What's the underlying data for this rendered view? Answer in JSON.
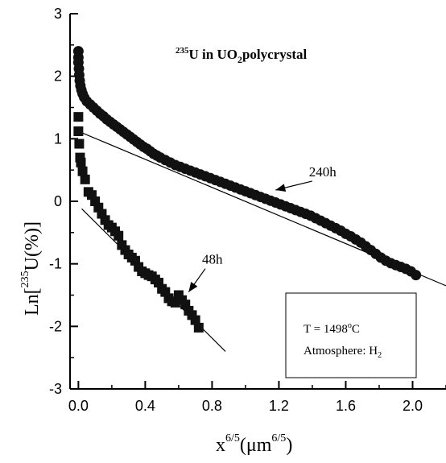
{
  "chart_data": {
    "type": "scatter",
    "title_parts": {
      "sup": "235",
      "main": "U in UO",
      "sub": "2",
      "tail": "polycrystal"
    },
    "xlabel_parts": {
      "base": "x",
      "sup1": "6/5",
      "open": "(μm",
      "sup2": "6/5",
      "close": ")"
    },
    "ylabel_parts": {
      "base": "Ln[",
      "sup": "235",
      "tail": "U(%)]"
    },
    "xlim": [
      -0.05,
      2.2
    ],
    "ylim": [
      -3,
      3
    ],
    "x_ticks": [
      0.0,
      0.4,
      0.8,
      1.2,
      1.6,
      2.0
    ],
    "x_tick_labels": [
      "0.0",
      "0.4",
      "0.8",
      "1.2",
      "1.6",
      "2.0"
    ],
    "y_ticks": [
      -3,
      -2,
      -1,
      0,
      1,
      2,
      3
    ],
    "y_tick_labels": [
      "-3",
      "-2",
      "-1",
      "0",
      "1",
      "2",
      "3"
    ],
    "series": [
      {
        "label": "240h",
        "marker": "circle",
        "points": [
          [
            0.0,
            2.4
          ],
          [
            0.0,
            2.3
          ],
          [
            0.0,
            2.22
          ],
          [
            0.003,
            2.12
          ],
          [
            0.005,
            2.02
          ],
          [
            0.008,
            1.93
          ],
          [
            0.012,
            1.85
          ],
          [
            0.018,
            1.78
          ],
          [
            0.025,
            1.72
          ],
          [
            0.035,
            1.66
          ],
          [
            0.05,
            1.6
          ],
          [
            0.07,
            1.55
          ],
          [
            0.09,
            1.5
          ],
          [
            0.11,
            1.45
          ],
          [
            0.13,
            1.4
          ],
          [
            0.15,
            1.36
          ],
          [
            0.17,
            1.31
          ],
          [
            0.19,
            1.27
          ],
          [
            0.21,
            1.23
          ],
          [
            0.23,
            1.19
          ],
          [
            0.25,
            1.15
          ],
          [
            0.27,
            1.11
          ],
          [
            0.29,
            1.07
          ],
          [
            0.31,
            1.03
          ],
          [
            0.33,
            0.99
          ],
          [
            0.35,
            0.95
          ],
          [
            0.37,
            0.91
          ],
          [
            0.39,
            0.87
          ],
          [
            0.41,
            0.84
          ],
          [
            0.43,
            0.8
          ],
          [
            0.45,
            0.76
          ],
          [
            0.47,
            0.73
          ],
          [
            0.49,
            0.7
          ],
          [
            0.52,
            0.66
          ],
          [
            0.55,
            0.62
          ],
          [
            0.58,
            0.58
          ],
          [
            0.61,
            0.55
          ],
          [
            0.64,
            0.52
          ],
          [
            0.67,
            0.49
          ],
          [
            0.7,
            0.46
          ],
          [
            0.73,
            0.43
          ],
          [
            0.76,
            0.4
          ],
          [
            0.79,
            0.37
          ],
          [
            0.82,
            0.34
          ],
          [
            0.85,
            0.31
          ],
          [
            0.88,
            0.28
          ],
          [
            0.91,
            0.25
          ],
          [
            0.94,
            0.22
          ],
          [
            0.97,
            0.19
          ],
          [
            1.0,
            0.16
          ],
          [
            1.03,
            0.13
          ],
          [
            1.06,
            0.1
          ],
          [
            1.09,
            0.07
          ],
          [
            1.12,
            0.04
          ],
          [
            1.15,
            0.01
          ],
          [
            1.18,
            -0.02
          ],
          [
            1.21,
            -0.05
          ],
          [
            1.24,
            -0.08
          ],
          [
            1.27,
            -0.11
          ],
          [
            1.3,
            -0.14
          ],
          [
            1.33,
            -0.17
          ],
          [
            1.36,
            -0.2
          ],
          [
            1.39,
            -0.23
          ],
          [
            1.42,
            -0.27
          ],
          [
            1.45,
            -0.31
          ],
          [
            1.48,
            -0.35
          ],
          [
            1.51,
            -0.39
          ],
          [
            1.54,
            -0.43
          ],
          [
            1.57,
            -0.47
          ],
          [
            1.6,
            -0.52
          ],
          [
            1.63,
            -0.56
          ],
          [
            1.66,
            -0.61
          ],
          [
            1.69,
            -0.66
          ],
          [
            1.72,
            -0.72
          ],
          [
            1.75,
            -0.78
          ],
          [
            1.78,
            -0.84
          ],
          [
            1.81,
            -0.9
          ],
          [
            1.84,
            -0.95
          ],
          [
            1.87,
            -0.99
          ],
          [
            1.9,
            -1.02
          ],
          [
            1.93,
            -1.05
          ],
          [
            1.96,
            -1.08
          ],
          [
            1.99,
            -1.12
          ],
          [
            2.02,
            -1.18
          ]
        ],
        "fit_line": [
          [
            0.0,
            1.12
          ],
          [
            2.2,
            -1.35
          ]
        ]
      },
      {
        "label": "48h",
        "marker": "square",
        "points": [
          [
            0.0,
            1.35
          ],
          [
            0.0,
            1.12
          ],
          [
            0.005,
            0.92
          ],
          [
            0.01,
            0.7
          ],
          [
            0.015,
            0.62
          ],
          [
            0.025,
            0.48
          ],
          [
            0.04,
            0.35
          ],
          [
            0.06,
            0.15
          ],
          [
            0.08,
            0.1
          ],
          [
            0.1,
            0.0
          ],
          [
            0.12,
            -0.1
          ],
          [
            0.14,
            -0.2
          ],
          [
            0.16,
            -0.3
          ],
          [
            0.18,
            -0.38
          ],
          [
            0.2,
            -0.42
          ],
          [
            0.22,
            -0.48
          ],
          [
            0.24,
            -0.55
          ],
          [
            0.26,
            -0.7
          ],
          [
            0.28,
            -0.78
          ],
          [
            0.3,
            -0.85
          ],
          [
            0.32,
            -0.9
          ],
          [
            0.34,
            -0.95
          ],
          [
            0.36,
            -1.05
          ],
          [
            0.38,
            -1.12
          ],
          [
            0.4,
            -1.15
          ],
          [
            0.42,
            -1.18
          ],
          [
            0.44,
            -1.2
          ],
          [
            0.46,
            -1.25
          ],
          [
            0.48,
            -1.3
          ],
          [
            0.5,
            -1.4
          ],
          [
            0.52,
            -1.45
          ],
          [
            0.54,
            -1.55
          ],
          [
            0.56,
            -1.6
          ],
          [
            0.58,
            -1.62
          ],
          [
            0.6,
            -1.5
          ],
          [
            0.62,
            -1.58
          ],
          [
            0.64,
            -1.65
          ],
          [
            0.66,
            -1.75
          ],
          [
            0.68,
            -1.82
          ],
          [
            0.7,
            -1.9
          ],
          [
            0.72,
            -2.02
          ]
        ],
        "fit_line": [
          [
            0.02,
            -0.12
          ],
          [
            0.88,
            -2.4
          ]
        ]
      }
    ],
    "annotations": [
      {
        "text": "240h",
        "x": 1.38,
        "y": 0.4,
        "arrow_to": [
          1.18,
          0.18
        ]
      },
      {
        "text": "48h",
        "x": 0.74,
        "y": -1.0,
        "arrow_to": [
          0.66,
          -1.45
        ]
      }
    ],
    "inset": {
      "line1_prefix": "T = 1498",
      "line1_sup": "o",
      "line1_suffix": "C",
      "line2_prefix": "Atmosphere: H",
      "line2_sub": "2"
    },
    "grid": false
  }
}
